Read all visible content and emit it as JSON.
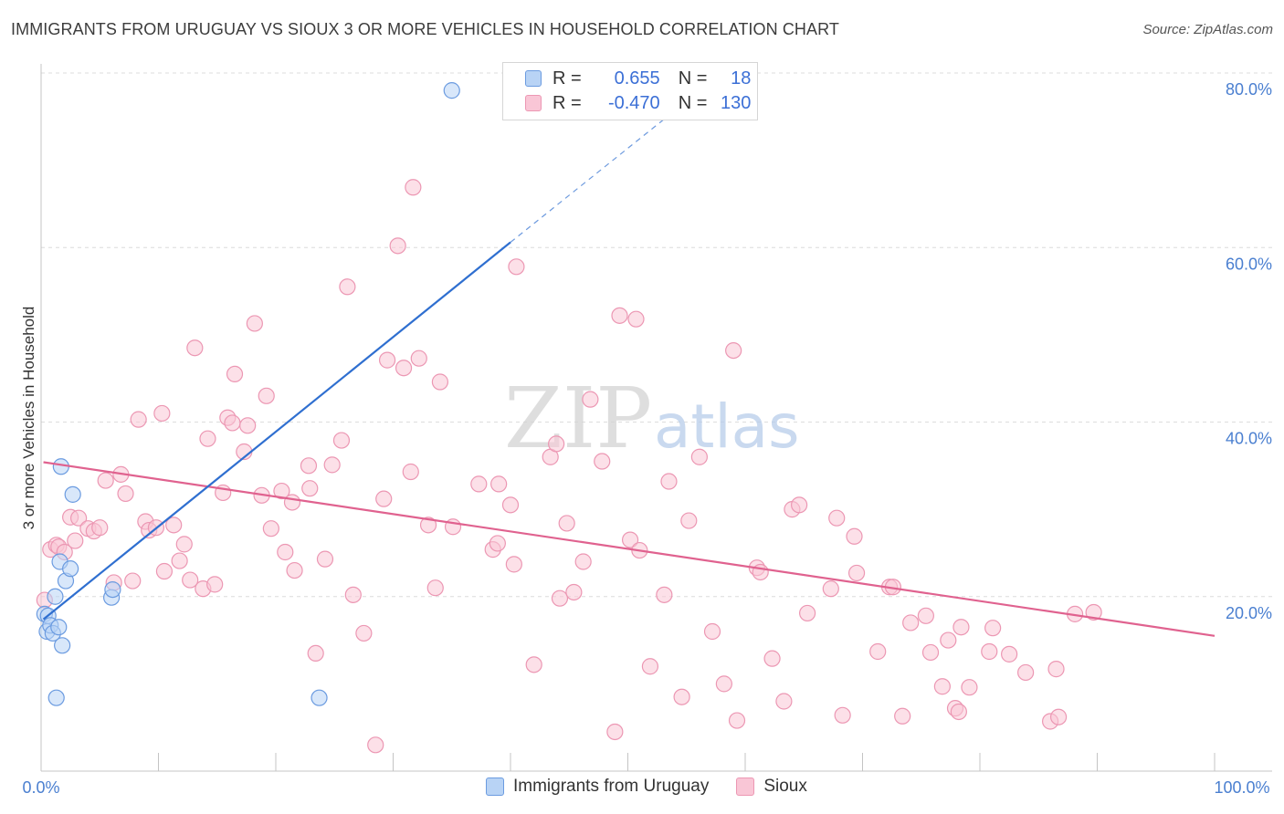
{
  "title": "IMMIGRANTS FROM URUGUAY VS SIOUX 3 OR MORE VEHICLES IN HOUSEHOLD CORRELATION CHART",
  "source": "Source: ZipAtlas.com",
  "watermark": {
    "zip": "ZIP",
    "atlas": "atlas"
  },
  "colors": {
    "uruguay_fill": "#b8d3f5",
    "uruguay_stroke": "#6b9be0",
    "uruguay_line": "#2f6fd0",
    "sioux_fill": "#f9c6d6",
    "sioux_stroke": "#ec97b3",
    "sioux_line": "#e0628f",
    "tick_text": "#4a7fd0",
    "grid": "#dcdcdc"
  },
  "legend": {
    "rows": [
      {
        "r_label": "R =",
        "r_value": "0.655",
        "n_label": "N =",
        "n_value": "18"
      },
      {
        "r_label": "R =",
        "r_value": "-0.470",
        "n_label": "N =",
        "n_value": "130"
      }
    ]
  },
  "bottom_legend": {
    "uruguay": "Immigrants from Uruguay",
    "sioux": "Sioux"
  },
  "chart_data": {
    "type": "scatter",
    "title": "IMMIGRANTS FROM URUGUAY VS SIOUX 3 OR MORE VEHICLES IN HOUSEHOLD CORRELATION CHART",
    "xlabel": "",
    "ylabel": "3 or more Vehicles in Household",
    "xlim": [
      0,
      100
    ],
    "ylim": [
      0,
      80
    ],
    "x_tick_labels": [
      "0.0%",
      "100.0%"
    ],
    "y_ticks": [
      20,
      40,
      60,
      80
    ],
    "y_tick_labels": [
      "20.0%",
      "40.0%",
      "60.0%",
      "80.0%"
    ],
    "grid": true,
    "series": [
      {
        "name": "Immigrants from Uruguay",
        "r": 0.655,
        "n": 18,
        "trend": {
          "x0": 0.2,
          "y0": 17.4,
          "x1": 40.0,
          "y1": 60.6,
          "dash_x1": 58.0,
          "dash_y1": 80.0
        },
        "points": [
          [
            0.3,
            18.0
          ],
          [
            0.5,
            16.0
          ],
          [
            0.6,
            17.8
          ],
          [
            0.8,
            16.7
          ],
          [
            1.0,
            15.8
          ],
          [
            1.2,
            20.0
          ],
          [
            1.3,
            8.4
          ],
          [
            1.5,
            16.5
          ],
          [
            1.6,
            24.0
          ],
          [
            1.7,
            34.9
          ],
          [
            1.8,
            14.4
          ],
          [
            2.1,
            21.8
          ],
          [
            2.5,
            23.2
          ],
          [
            2.7,
            31.7
          ],
          [
            6.0,
            19.9
          ],
          [
            6.1,
            20.8
          ],
          [
            23.7,
            8.4
          ],
          [
            35.0,
            78.0
          ]
        ]
      },
      {
        "name": "Sioux",
        "r": -0.47,
        "n": 130,
        "trend": {
          "x0": 0.2,
          "y0": 35.4,
          "x1": 100.0,
          "y1": 15.5
        },
        "points": [
          [
            0.3,
            19.6
          ],
          [
            0.8,
            25.4
          ],
          [
            1.3,
            25.9
          ],
          [
            1.5,
            25.7
          ],
          [
            2.0,
            25.1
          ],
          [
            2.5,
            29.1
          ],
          [
            2.9,
            26.4
          ],
          [
            3.2,
            29.0
          ],
          [
            4.0,
            27.8
          ],
          [
            4.5,
            27.5
          ],
          [
            5.0,
            27.9
          ],
          [
            5.5,
            33.3
          ],
          [
            6.2,
            21.6
          ],
          [
            6.8,
            34.0
          ],
          [
            7.2,
            31.8
          ],
          [
            7.8,
            21.8
          ],
          [
            8.3,
            40.3
          ],
          [
            8.9,
            28.6
          ],
          [
            9.2,
            27.6
          ],
          [
            9.8,
            27.9
          ],
          [
            10.3,
            41.0
          ],
          [
            10.5,
            22.9
          ],
          [
            11.3,
            28.2
          ],
          [
            11.8,
            24.1
          ],
          [
            12.2,
            26.0
          ],
          [
            12.7,
            21.9
          ],
          [
            13.1,
            48.5
          ],
          [
            13.8,
            20.9
          ],
          [
            14.2,
            38.1
          ],
          [
            14.8,
            21.4
          ],
          [
            15.5,
            31.9
          ],
          [
            15.9,
            40.5
          ],
          [
            16.3,
            39.9
          ],
          [
            16.5,
            45.5
          ],
          [
            17.3,
            36.6
          ],
          [
            17.6,
            39.6
          ],
          [
            18.2,
            51.3
          ],
          [
            18.8,
            31.6
          ],
          [
            19.2,
            43.0
          ],
          [
            19.6,
            27.8
          ],
          [
            20.5,
            32.1
          ],
          [
            20.8,
            25.1
          ],
          [
            21.4,
            30.8
          ],
          [
            21.6,
            23.0
          ],
          [
            22.8,
            35.0
          ],
          [
            22.9,
            32.4
          ],
          [
            23.4,
            13.5
          ],
          [
            24.2,
            24.3
          ],
          [
            24.8,
            35.1
          ],
          [
            25.6,
            37.9
          ],
          [
            26.1,
            55.5
          ],
          [
            26.6,
            20.2
          ],
          [
            27.5,
            15.8
          ],
          [
            28.5,
            3.0
          ],
          [
            29.2,
            31.2
          ],
          [
            29.5,
            47.1
          ],
          [
            30.4,
            60.2
          ],
          [
            30.9,
            46.2
          ],
          [
            31.5,
            34.3
          ],
          [
            31.7,
            66.9
          ],
          [
            32.2,
            47.3
          ],
          [
            33.0,
            28.2
          ],
          [
            33.6,
            21.0
          ],
          [
            34.0,
            44.6
          ],
          [
            35.1,
            28.0
          ],
          [
            37.3,
            32.9
          ],
          [
            38.5,
            25.4
          ],
          [
            38.9,
            26.1
          ],
          [
            39.0,
            32.9
          ],
          [
            40.0,
            30.5
          ],
          [
            40.3,
            23.7
          ],
          [
            40.5,
            57.8
          ],
          [
            42.0,
            12.2
          ],
          [
            43.4,
            36.0
          ],
          [
            43.9,
            37.5
          ],
          [
            44.2,
            19.8
          ],
          [
            44.8,
            28.4
          ],
          [
            45.4,
            20.5
          ],
          [
            46.2,
            24.0
          ],
          [
            46.8,
            42.6
          ],
          [
            47.8,
            35.5
          ],
          [
            48.9,
            4.5
          ],
          [
            49.3,
            52.2
          ],
          [
            50.2,
            26.5
          ],
          [
            50.7,
            51.8
          ],
          [
            51.0,
            25.3
          ],
          [
            51.9,
            12.0
          ],
          [
            53.1,
            20.2
          ],
          [
            53.5,
            33.2
          ],
          [
            54.6,
            8.5
          ],
          [
            55.2,
            28.7
          ],
          [
            56.1,
            36.0
          ],
          [
            57.2,
            16.0
          ],
          [
            58.2,
            10.0
          ],
          [
            59.0,
            48.2
          ],
          [
            59.3,
            5.8
          ],
          [
            61.0,
            23.3
          ],
          [
            61.3,
            22.8
          ],
          [
            62.3,
            12.9
          ],
          [
            63.3,
            8.0
          ],
          [
            64.0,
            30.0
          ],
          [
            64.6,
            30.5
          ],
          [
            65.3,
            18.1
          ],
          [
            67.3,
            20.9
          ],
          [
            67.8,
            29.0
          ],
          [
            68.3,
            6.4
          ],
          [
            69.3,
            26.9
          ],
          [
            69.5,
            22.7
          ],
          [
            71.3,
            13.7
          ],
          [
            72.3,
            21.1
          ],
          [
            72.6,
            21.1
          ],
          [
            73.4,
            6.3
          ],
          [
            74.1,
            17.0
          ],
          [
            75.4,
            17.8
          ],
          [
            75.8,
            13.6
          ],
          [
            76.8,
            9.7
          ],
          [
            77.3,
            15.0
          ],
          [
            77.9,
            7.2
          ],
          [
            78.2,
            6.8
          ],
          [
            78.4,
            16.5
          ],
          [
            79.1,
            9.6
          ],
          [
            80.8,
            13.7
          ],
          [
            81.1,
            16.4
          ],
          [
            82.5,
            13.4
          ],
          [
            83.9,
            11.3
          ],
          [
            86.0,
            5.7
          ],
          [
            86.5,
            11.7
          ],
          [
            86.7,
            6.2
          ],
          [
            88.1,
            18.0
          ],
          [
            89.7,
            18.2
          ]
        ]
      }
    ]
  }
}
